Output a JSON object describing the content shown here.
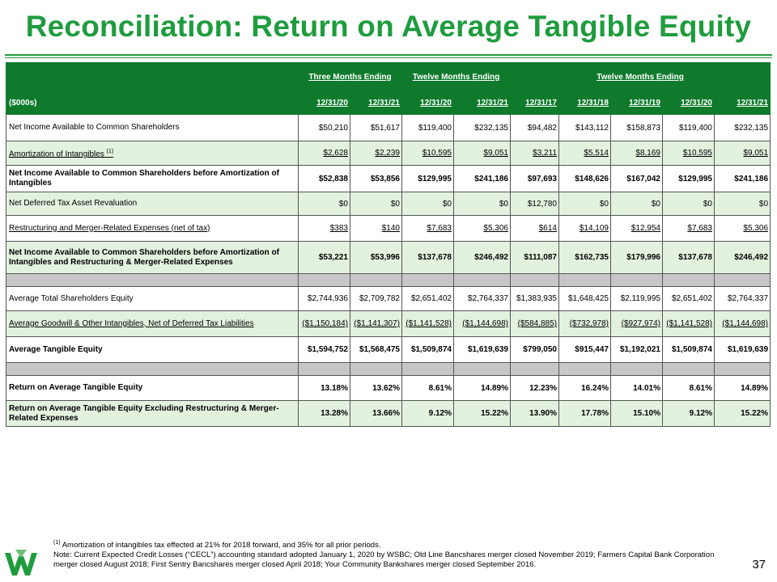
{
  "title": "Reconciliation: Return on Average Tangible Equity",
  "table": {
    "unit_label": "($000s)",
    "groups": {
      "g1": "Three Months Ending",
      "g2": "Twelve Months Ending",
      "g3": "Twelve Months Ending"
    },
    "dates": [
      "12/31/20",
      "12/31/21",
      "12/31/20",
      "12/31/21",
      "12/31/17",
      "12/31/18",
      "12/31/19",
      "12/31/20",
      "12/31/21"
    ],
    "rows": {
      "r0": {
        "label": "Net Income Available to Common Shareholders",
        "v": [
          "$50,210",
          "$51,617",
          "$119,400",
          "$232,135",
          "$94,482",
          "$143,112",
          "$158,873",
          "$119,400",
          "$232,135"
        ]
      },
      "r1": {
        "label": "Amortization of Intangibles",
        "sup": "(1)",
        "v": [
          "$2,628",
          "$2,239",
          "$10,595",
          "$9,051",
          "$3,211",
          "$5,514",
          "$8,169",
          "$10,595",
          "$9,051"
        ]
      },
      "r2": {
        "label": "Net Income Available to Common Shareholders before Amortization of Intangibles",
        "v": [
          "$52,838",
          "$53,856",
          "$129,995",
          "$241,186",
          "$97,693",
          "$148,626",
          "$167,042",
          "$129,995",
          "$241,186"
        ]
      },
      "r3": {
        "label": "Net Deferred Tax Asset Revaluation",
        "v": [
          "$0",
          "$0",
          "$0",
          "$0",
          "$12,780",
          "$0",
          "$0",
          "$0",
          "$0"
        ]
      },
      "r4": {
        "label": "Restructuring and Merger-Related Expenses (net of tax)",
        "v": [
          "$383",
          "$140",
          "$7,683",
          "$5,306",
          "$614",
          "$14,109",
          "$12,954",
          "$7,683",
          "$5,306"
        ]
      },
      "r5": {
        "label": "Net Income Available to Common Shareholders before Amortization of Intangibles and Restructuring & Merger-Related Expenses",
        "v": [
          "$53,221",
          "$53,996",
          "$137,678",
          "$246,492",
          "$111,087",
          "$162,735",
          "$179,996",
          "$137,678",
          "$246,492"
        ]
      },
      "r6": {
        "label": "Average Total Shareholders Equity",
        "v": [
          "$2,744,936",
          "$2,709,782",
          "$2,651,402",
          "$2,764,337",
          "$1,383,935",
          "$1,648,425",
          "$2,119,995",
          "$2,651,402",
          "$2,764,337"
        ]
      },
      "r7": {
        "label": "Average Goodwill & Other Intangibles, Net of Deferred Tax Liabilities",
        "v": [
          "($1,150,184)",
          "($1,141,307)",
          "($1,141,528)",
          "($1,144,698)",
          "($584,885)",
          "($732,978)",
          "($927,974)",
          "($1,141,528)",
          "($1,144,698)"
        ]
      },
      "r8": {
        "label": "Average Tangible Equity",
        "v": [
          "$1,594,752",
          "$1,568,475",
          "$1,509,874",
          "$1,619,639",
          "$799,050",
          "$915,447",
          "$1,192,021",
          "$1,509,874",
          "$1,619,639"
        ]
      },
      "r9": {
        "label": "Return on Average Tangible Equity",
        "v": [
          "13.18%",
          "13.62%",
          "8.61%",
          "14.89%",
          "12.23%",
          "16.24%",
          "14.01%",
          "8.61%",
          "14.89%"
        ]
      },
      "r10": {
        "label": "Return on Average Tangible Equity Excluding Restructuring & Merger-Related Expenses",
        "v": [
          "13.28%",
          "13.66%",
          "9.12%",
          "15.22%",
          "13.90%",
          "17.78%",
          "15.10%",
          "9.12%",
          "15.22%"
        ]
      }
    }
  },
  "footnote": {
    "sup": "(1)",
    "line1": "Amortization of intangibles tax effected at 21% for 2018 forward, and 35% for all prior periods.",
    "line2": "Note: Current Expected Credit Losses (“CECL”) accounting standard adopted January 1, 2020 by WSBC; Old Line Bancshares merger closed November 2019; Farmers Capital Bank Corporation merger closed August 2018; First Sentry Bancshares merger closed April 2018; Your Community Bankshares merger closed September 2016."
  },
  "page_number": "37",
  "colors": {
    "brand_green": "#1f9c3e",
    "header_green": "#0f7a2c",
    "shade": "#e3f2df"
  }
}
